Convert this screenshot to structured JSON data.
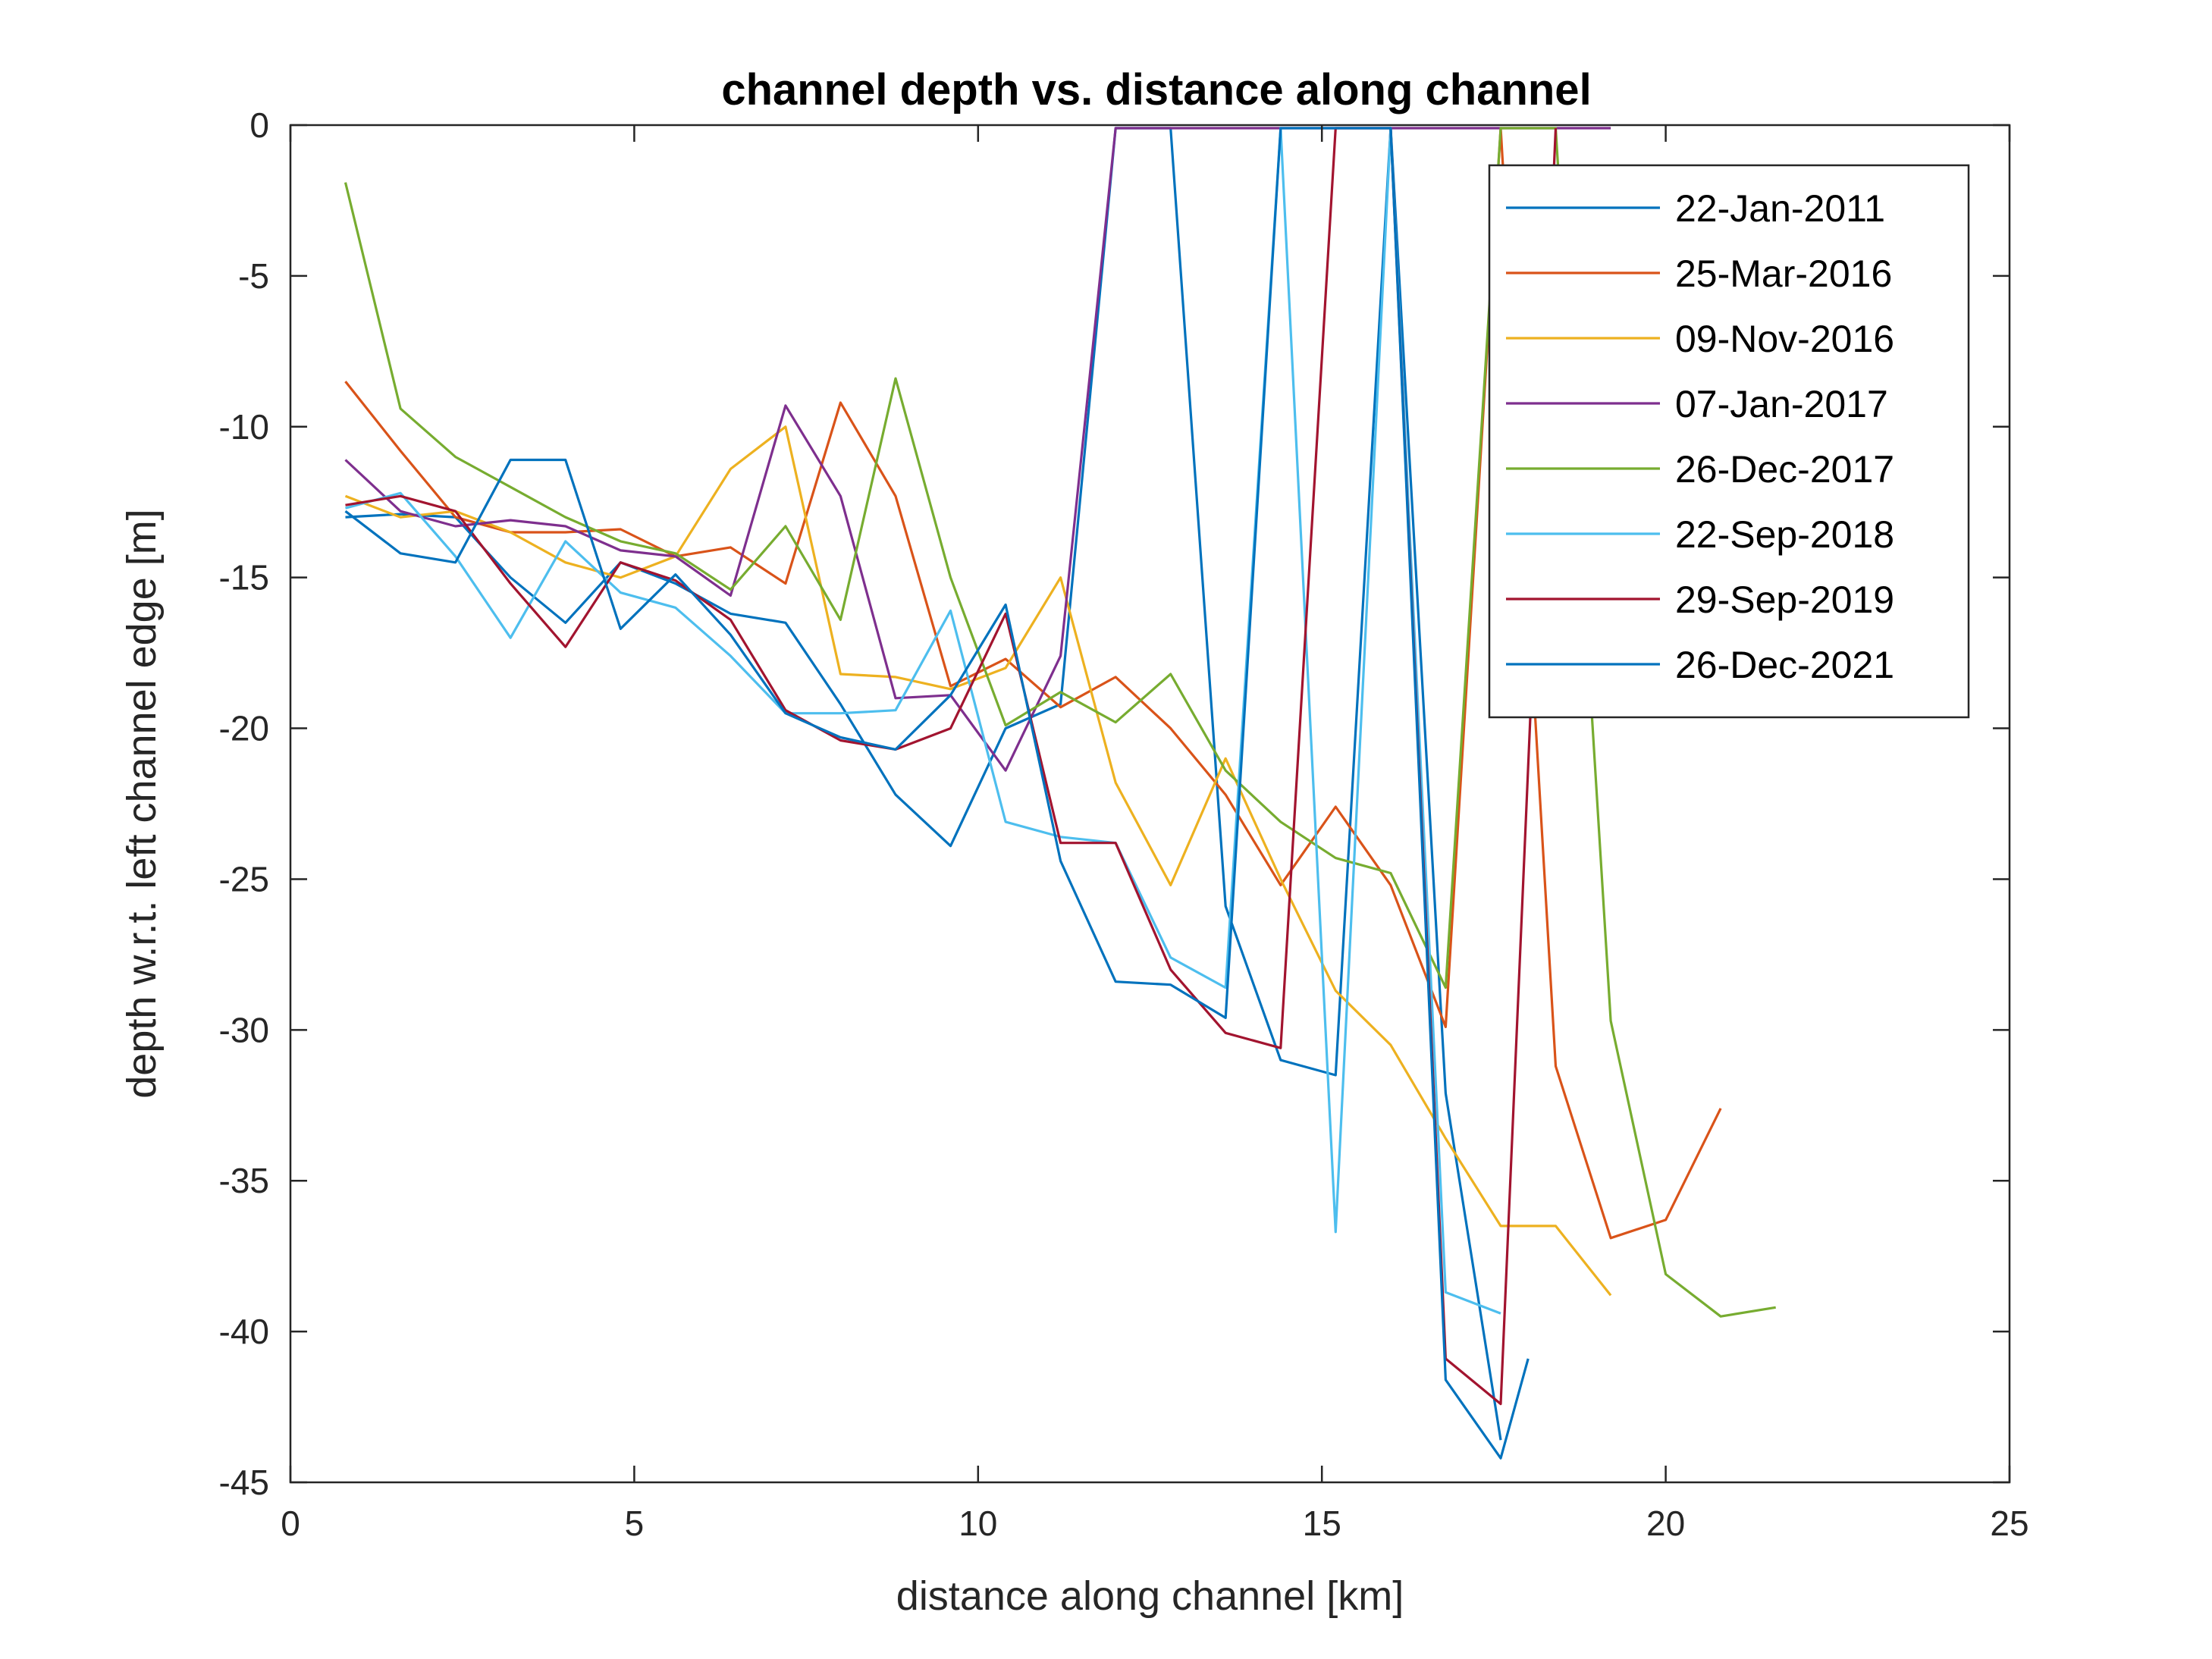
{
  "chart_data": {
    "type": "line",
    "title": "channel depth vs. distance along channel",
    "xlabel": "distance along channel [km]",
    "ylabel": "depth w.r.t. left channel edge [m]",
    "xlim": [
      0,
      25
    ],
    "ylim": [
      -45,
      0
    ],
    "xticks": [
      "0",
      "5",
      "10",
      "15",
      "20",
      "25"
    ],
    "yticks": [
      "0",
      "-5",
      "-10",
      "-15",
      "-20",
      "-25",
      "-30",
      "-35",
      "-40",
      "-45"
    ],
    "grid": false,
    "legend_position": "top-right",
    "series": [
      {
        "name": "22-Jan-2011",
        "color": "#0072BD",
        "x": [
          0.8,
          1.6,
          2.4,
          3.2,
          4.0,
          4.8,
          5.6,
          6.4,
          7.2,
          8.0,
          8.8,
          9.6,
          10.4,
          11.2,
          12.0,
          12.8,
          13.6,
          14.4,
          15.2,
          16.0,
          16.8,
          17.6
        ],
        "y": [
          -13.0,
          -12.9,
          -13.0,
          -15.0,
          -16.5,
          -14.5,
          -15.2,
          -16.2,
          -16.5,
          -19.2,
          -22.2,
          -23.9,
          -20.0,
          -19.2,
          -0.1,
          -0.1,
          -25.9,
          -31.0,
          -31.5,
          -0.1,
          -32.1,
          -43.6
        ]
      },
      {
        "name": "25-Mar-2016",
        "color": "#D95319",
        "x": [
          0.8,
          1.6,
          2.4,
          3.2,
          4.0,
          4.8,
          5.6,
          6.4,
          7.2,
          8.0,
          8.8,
          9.6,
          10.4,
          11.2,
          12.0,
          12.8,
          13.6,
          14.4,
          15.2,
          16.0,
          16.8,
          17.6,
          18.4,
          19.2,
          20.0,
          20.8
        ],
        "y": [
          -8.5,
          -10.8,
          -13.0,
          -13.5,
          -13.5,
          -13.4,
          -14.3,
          -14.0,
          -15.2,
          -9.2,
          -12.3,
          -18.6,
          -17.7,
          -19.3,
          -18.3,
          -20.0,
          -22.2,
          -25.2,
          -22.6,
          -25.2,
          -29.9,
          -0.1,
          -31.2,
          -36.9,
          -36.3,
          -32.6
        ]
      },
      {
        "name": "09-Nov-2016",
        "color": "#EDB120",
        "x": [
          0.8,
          1.6,
          2.4,
          3.2,
          4.0,
          4.8,
          5.6,
          6.4,
          7.2,
          8.0,
          8.8,
          9.6,
          10.4,
          11.2,
          12.0,
          12.8,
          13.6,
          14.4,
          15.2,
          16.0,
          16.8,
          17.6,
          18.4,
          19.2
        ],
        "y": [
          -12.3,
          -13.0,
          -12.8,
          -13.5,
          -14.5,
          -15.0,
          -14.3,
          -11.4,
          -10.0,
          -18.2,
          -18.3,
          -18.7,
          -18.0,
          -15.0,
          -21.8,
          -25.2,
          -21.0,
          -25.0,
          -28.7,
          -30.5,
          -33.6,
          -36.5,
          -36.5,
          -38.8
        ]
      },
      {
        "name": "07-Jan-2017",
        "color": "#7E2F8E",
        "x": [
          0.8,
          1.6,
          2.4,
          3.2,
          4.0,
          4.8,
          5.6,
          6.4,
          7.2,
          8.0,
          8.8,
          9.6,
          10.4,
          11.2,
          12.0,
          12.8,
          13.6,
          14.4,
          15.2,
          16.0,
          16.8,
          17.6,
          18.4,
          19.2
        ],
        "y": [
          -11.1,
          -12.8,
          -13.3,
          -13.1,
          -13.3,
          -14.1,
          -14.3,
          -15.6,
          -9.3,
          -12.3,
          -19.0,
          -18.9,
          -21.4,
          -17.6,
          -0.1,
          -0.1,
          -0.1,
          -0.1,
          -0.1,
          -0.1,
          -0.1,
          -0.1,
          -0.1,
          -0.1
        ]
      },
      {
        "name": "26-Dec-2017",
        "color": "#77AC30",
        "x": [
          0.8,
          1.6,
          2.4,
          3.2,
          4.0,
          4.8,
          5.6,
          6.4,
          7.2,
          8.0,
          8.8,
          9.6,
          10.4,
          11.2,
          12.0,
          12.8,
          13.6,
          14.4,
          15.2,
          16.0,
          16.8,
          17.6,
          18.4,
          19.2,
          20.0,
          20.8,
          21.6
        ],
        "y": [
          -1.9,
          -9.4,
          -11.0,
          -12.0,
          -13.0,
          -13.8,
          -14.2,
          -15.4,
          -13.3,
          -16.4,
          -8.4,
          -15.0,
          -19.9,
          -18.8,
          -19.8,
          -18.2,
          -21.4,
          -23.1,
          -24.3,
          -24.8,
          -28.6,
          -0.1,
          -0.1,
          -29.7,
          -38.1,
          -39.5,
          -39.2
        ]
      },
      {
        "name": "22-Sep-2018",
        "color": "#4DBEEE",
        "x": [
          0.8,
          1.6,
          2.4,
          3.2,
          4.0,
          4.8,
          5.6,
          6.4,
          7.2,
          8.0,
          8.8,
          9.6,
          10.4,
          11.2,
          12.0,
          12.8,
          13.6,
          14.4,
          15.2,
          16.0,
          16.8,
          17.6
        ],
        "y": [
          -12.7,
          -12.2,
          -14.3,
          -17.0,
          -13.8,
          -15.5,
          -16.0,
          -17.6,
          -19.5,
          -19.5,
          -19.4,
          -16.1,
          -23.1,
          -23.6,
          -23.8,
          -27.6,
          -28.6,
          -0.1,
          -36.7,
          -0.1,
          -38.7,
          -39.4
        ]
      },
      {
        "name": "29-Sep-2019",
        "color": "#A2142F",
        "x": [
          0.8,
          1.6,
          2.4,
          3.2,
          4.0,
          4.8,
          5.6,
          6.4,
          7.2,
          8.0,
          8.8,
          9.6,
          10.4,
          11.2,
          12.0,
          12.8,
          13.6,
          14.4,
          15.2,
          16.0,
          16.8,
          17.6,
          18.4
        ],
        "y": [
          -12.6,
          -12.3,
          -12.8,
          -15.2,
          -17.3,
          -14.5,
          -15.1,
          -16.4,
          -19.4,
          -20.4,
          -20.7,
          -20.0,
          -16.2,
          -23.8,
          -23.8,
          -28.0,
          -30.1,
          -30.6,
          -0.1,
          -0.1,
          -40.9,
          -42.4,
          -0.1
        ]
      },
      {
        "name": "26-Dec-2021",
        "color": "#0072BD",
        "x": [
          0.8,
          1.6,
          2.4,
          3.2,
          4.0,
          4.8,
          5.6,
          6.4,
          7.2,
          8.0,
          8.8,
          9.6,
          10.4,
          11.2,
          12.0,
          12.8,
          13.6,
          14.4,
          15.2,
          16.0,
          16.8,
          17.6,
          18.0
        ],
        "y": [
          -12.8,
          -14.2,
          -14.5,
          -11.1,
          -11.1,
          -16.7,
          -14.9,
          -16.9,
          -19.5,
          -20.3,
          -20.7,
          -18.9,
          -15.9,
          -24.4,
          -28.4,
          -28.5,
          -29.6,
          -0.1,
          -0.1,
          -0.1,
          -41.6,
          -44.2,
          -40.9
        ]
      }
    ]
  }
}
